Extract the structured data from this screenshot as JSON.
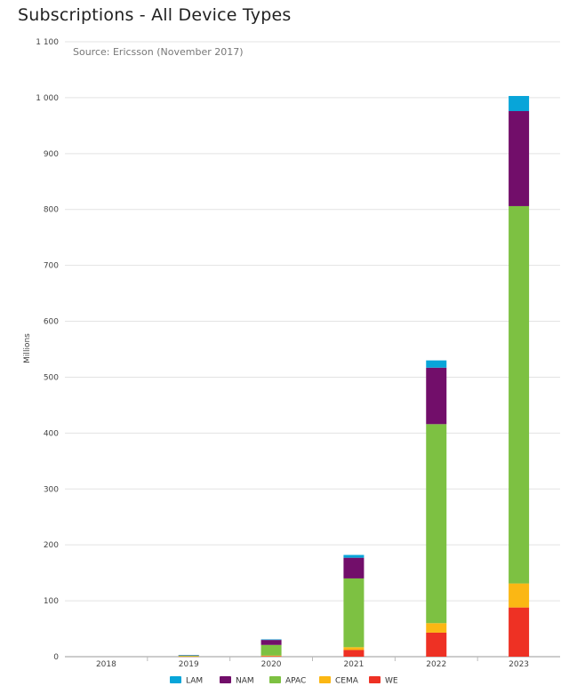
{
  "chart_data": {
    "type": "bar",
    "stacked": true,
    "title": "Subscriptions - All Device Types",
    "source": "Source: Ericsson (November 2017)",
    "ylabel": "Millions",
    "xlabel": "",
    "ylim": [
      0,
      1100
    ],
    "yticks": [
      0,
      100,
      200,
      300,
      400,
      500,
      600,
      700,
      800,
      900,
      1000,
      1100
    ],
    "ytick_labels": [
      "0",
      "100",
      "200",
      "300",
      "400",
      "500",
      "600",
      "700",
      "800",
      "900",
      "1 000",
      "1 100"
    ],
    "grid": true,
    "legend_position": "bottom",
    "categories": [
      "2018",
      "2019",
      "2020",
      "2021",
      "2022",
      "2023"
    ],
    "series": [
      {
        "name": "WE",
        "color": "#ee3124",
        "values": [
          0,
          0.5,
          1,
          12,
          43,
          88
        ]
      },
      {
        "name": "CEMA",
        "color": "#fbb714",
        "values": [
          0,
          0.3,
          1,
          5,
          17,
          43
        ]
      },
      {
        "name": "APAC",
        "color": "#7dc142",
        "values": [
          0,
          1.2,
          19,
          123,
          356,
          675
        ]
      },
      {
        "name": "NAM",
        "color": "#720e6a",
        "values": [
          0,
          0.5,
          9,
          37,
          101,
          170
        ]
      },
      {
        "name": "LAM",
        "color": "#08a5d9",
        "values": [
          0,
          0.3,
          1,
          5,
          13,
          27
        ]
      }
    ],
    "legend_order": [
      "LAM",
      "NAM",
      "APAC",
      "CEMA",
      "WE"
    ]
  }
}
